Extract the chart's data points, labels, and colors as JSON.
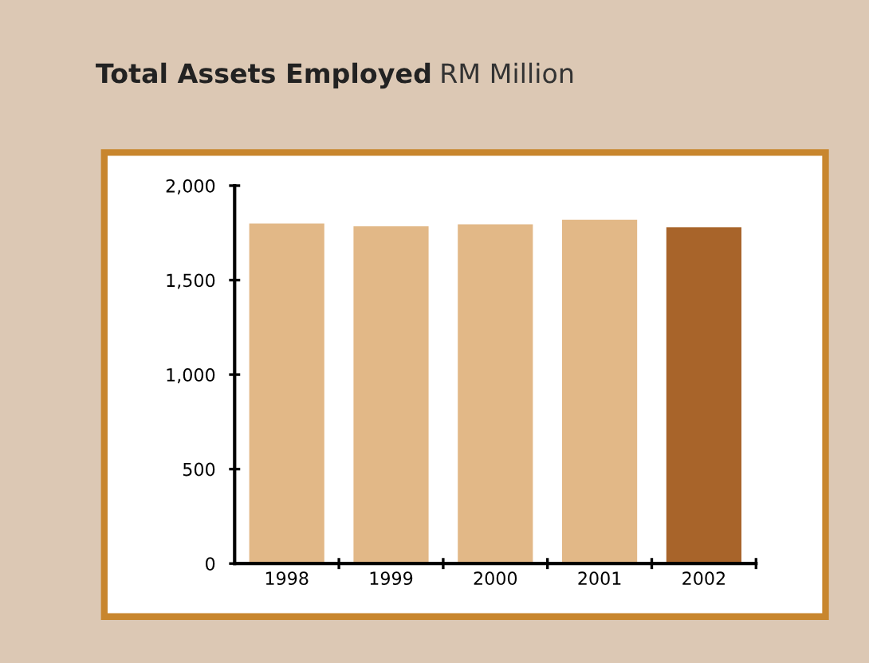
{
  "chart_data": {
    "type": "bar",
    "title": "Total Assets Employed",
    "subtitle": "RM Million",
    "categories": [
      "1998",
      "1999",
      "2000",
      "2001",
      "2002"
    ],
    "values": [
      1800,
      1785,
      1795,
      1820,
      1780
    ],
    "colors": [
      "#e2b887",
      "#e2b887",
      "#e2b887",
      "#e2b887",
      "#a8642a"
    ],
    "ylim": [
      0,
      2000
    ],
    "yticks": [
      0,
      {
        "value": 500,
        "label": "500"
      },
      {
        "value": 1000,
        "label": "1,000"
      },
      {
        "value": 1500,
        "label": "1,500"
      },
      {
        "value": 2000,
        "label": "2,000"
      }
    ],
    "grid": false
  }
}
